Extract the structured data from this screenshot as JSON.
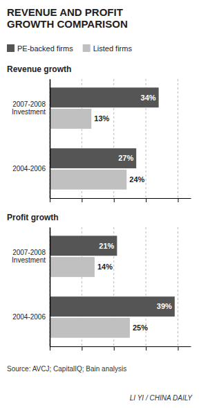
{
  "chart_data": [
    {
      "type": "bar",
      "orientation": "horizontal",
      "title": "REVENUE AND PROFIT\nGROWTH COMPARISON",
      "subtitle": "Revenue growth",
      "categories": [
        "2007-2008\nInvestment",
        "2004-2006"
      ],
      "series": [
        {
          "name": "PE-backed firms",
          "color": "#555555",
          "values": [
            34,
            27
          ],
          "value_labels": [
            "34%",
            "27%"
          ]
        },
        {
          "name": "Listed firms",
          "color": "#c0c0c0",
          "values": [
            13,
            24
          ],
          "value_labels": [
            "13%",
            "24%"
          ]
        }
      ],
      "xlim": [
        0,
        44
      ],
      "xticks": [
        0,
        10,
        20,
        30,
        40
      ],
      "grid": true,
      "data_labels": true,
      "tick_labels": "y",
      "legend": "top left"
    },
    {
      "type": "bar",
      "orientation": "horizontal",
      "subtitle": "Profit growth",
      "categories": [
        "2007-2008\nInvestment",
        "2004-2006"
      ],
      "series": [
        {
          "name": "PE-backed firms",
          "color": "#555555",
          "values": [
            21,
            39
          ],
          "value_labels": [
            "21%",
            "39%"
          ]
        },
        {
          "name": "Listed firms",
          "color": "#c0c0c0",
          "values": [
            14,
            25
          ],
          "value_labels": [
            "14%",
            "25%"
          ]
        }
      ],
      "xlim": [
        0,
        44
      ],
      "xticks": [
        0,
        10,
        20,
        30,
        40
      ],
      "grid": true,
      "data_labels": true,
      "tick_labels": "y",
      "legend": false,
      "annotations": [
        "Source: AVCJ; CapitalIQ; Bain analysis",
        "LI YI / CHINA DAILY"
      ]
    }
  ]
}
